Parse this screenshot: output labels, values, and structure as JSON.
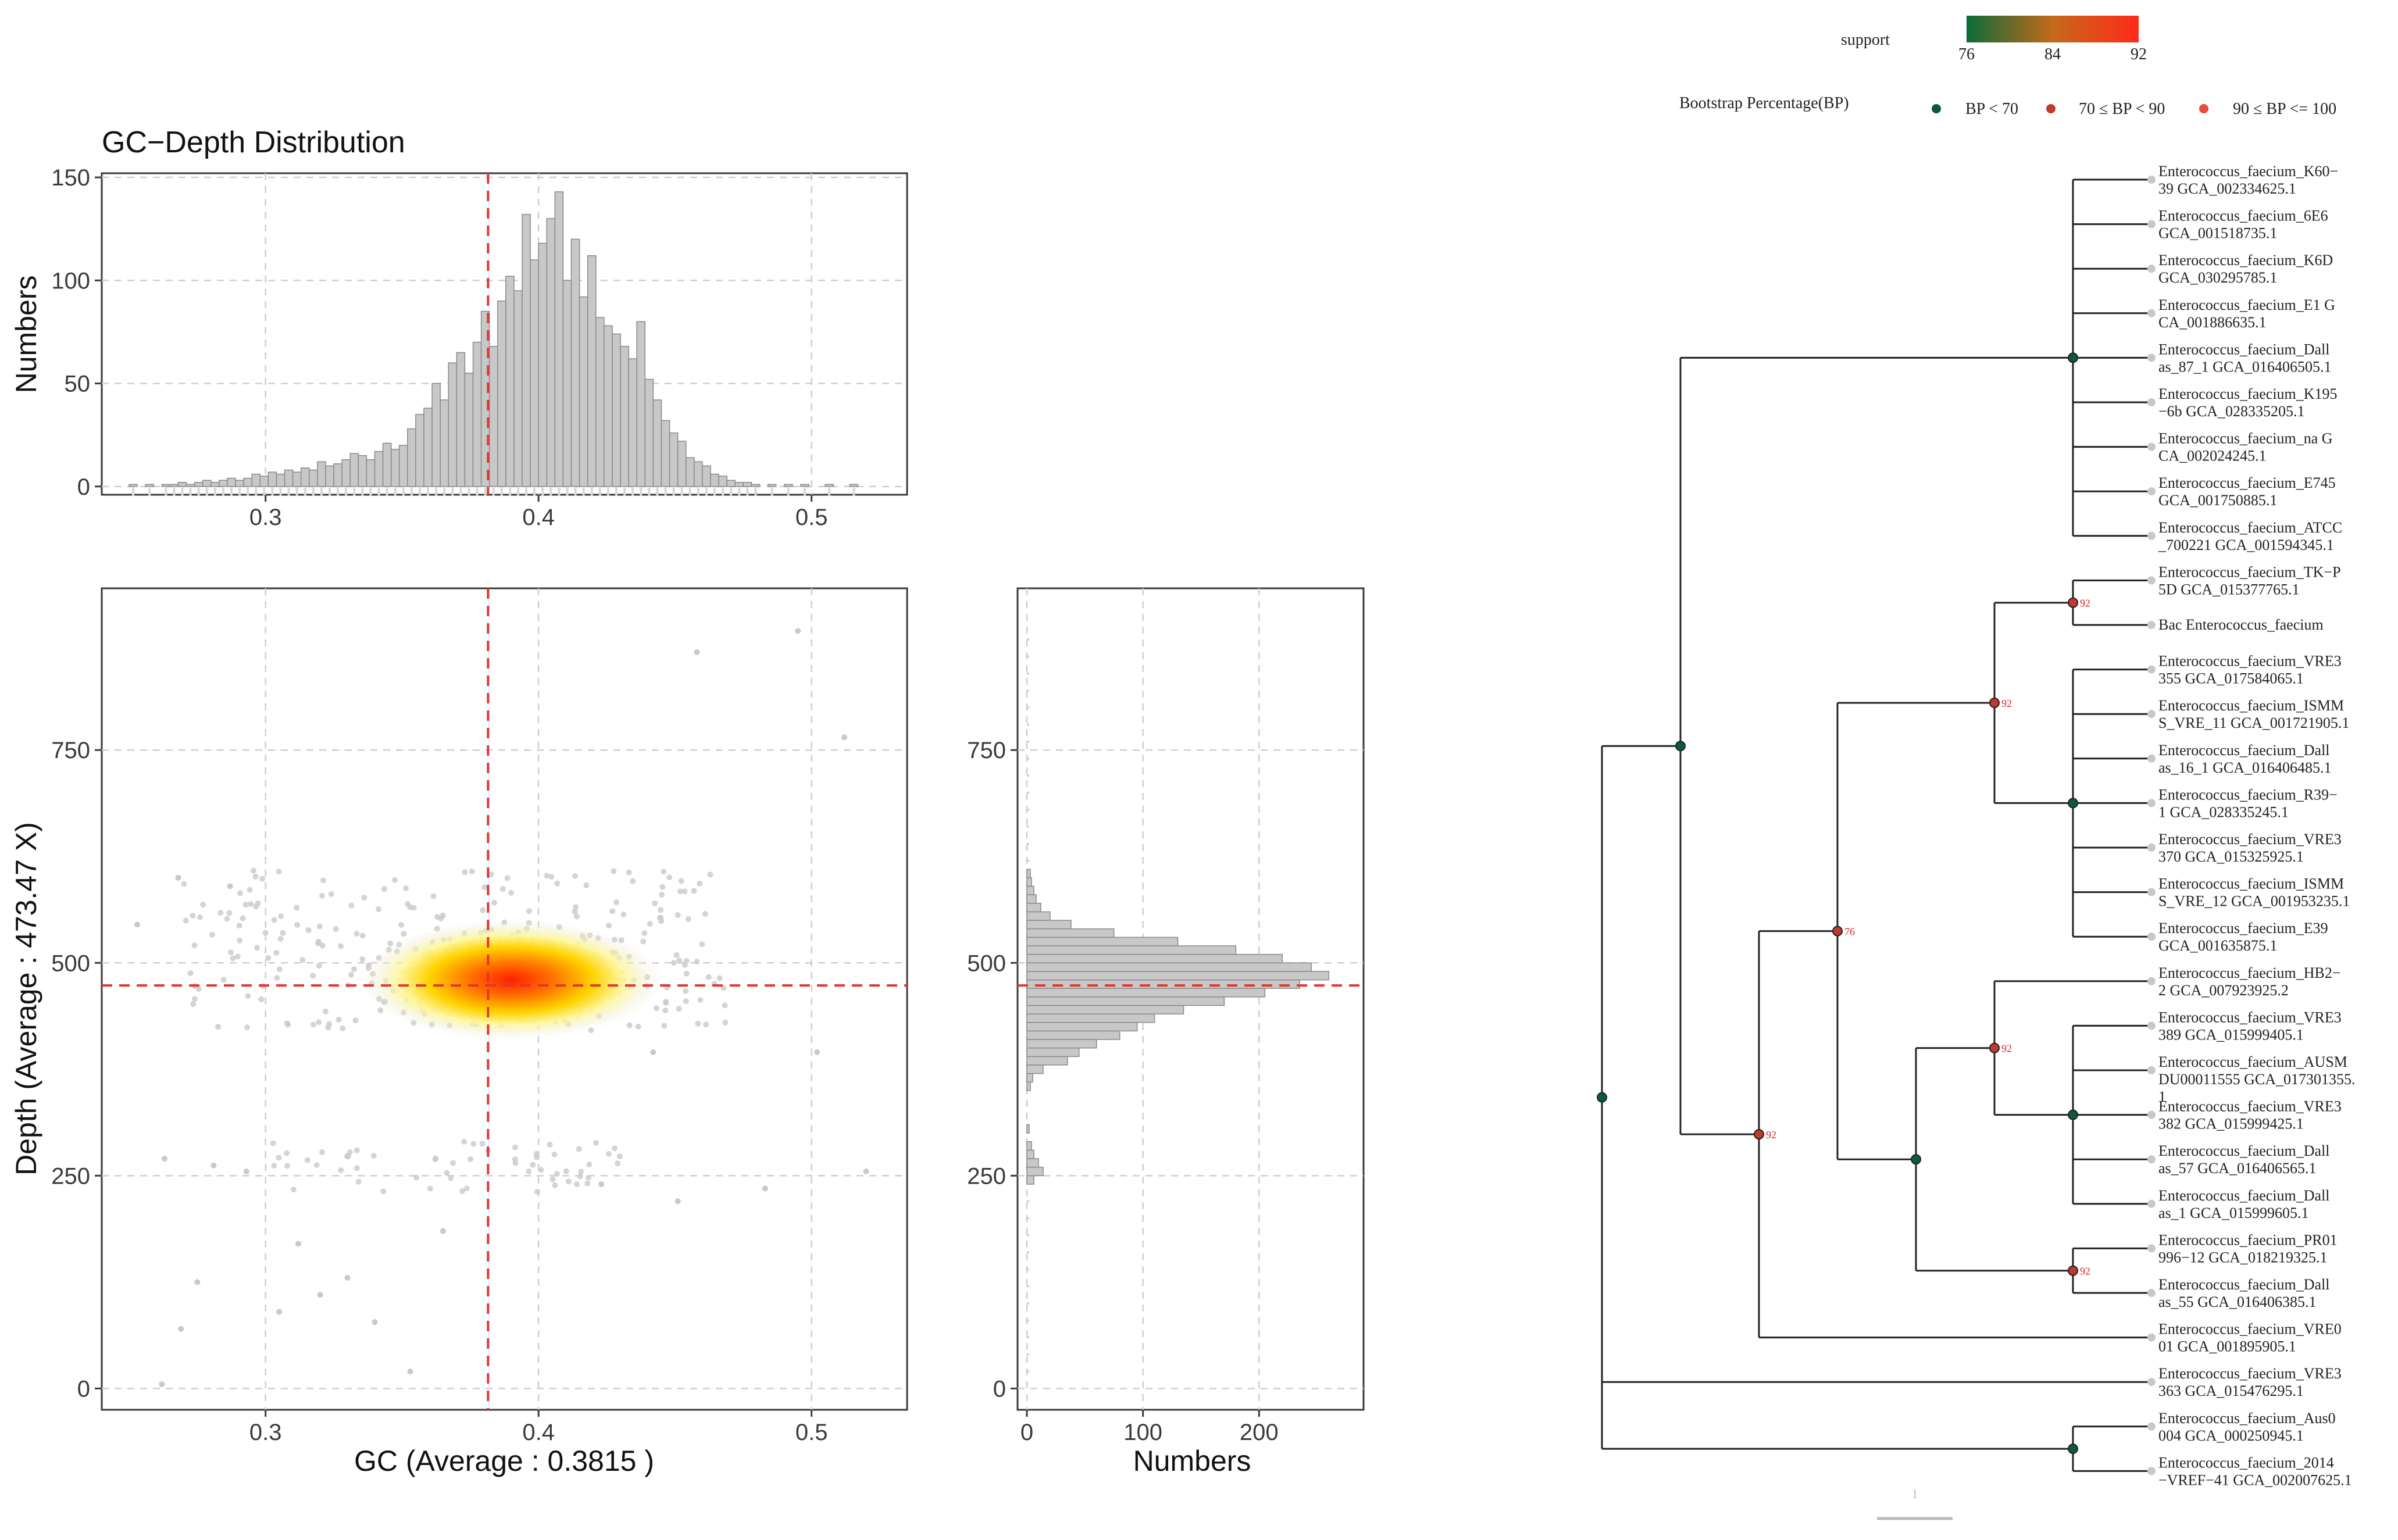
{
  "chart_data": [
    {
      "type": "bar",
      "title": "GC−Depth Distribution",
      "xlabel": "",
      "ylabel": "Numbers",
      "xlim": [
        0.24,
        0.535
      ],
      "ylim": [
        -4,
        152
      ],
      "x_ticks": [
        0.3,
        0.4,
        0.5
      ],
      "y_ticks": [
        0,
        50,
        100,
        150
      ],
      "mean_line_x": 0.3815,
      "grid": true,
      "bin_width": 0.003,
      "bin_start": 0.25,
      "values": [
        1,
        0,
        1,
        0,
        1,
        1,
        2,
        1,
        2,
        3,
        2,
        3,
        4,
        3,
        4,
        6,
        5,
        7,
        6,
        8,
        7,
        9,
        8,
        12,
        10,
        11,
        13,
        16,
        15,
        13,
        17,
        21,
        18,
        20,
        28,
        35,
        38,
        50,
        42,
        60,
        65,
        55,
        70,
        85,
        68,
        90,
        102,
        95,
        132,
        110,
        118,
        130,
        143,
        100,
        120,
        92,
        112,
        82,
        78,
        74,
        68,
        62,
        80,
        52,
        42,
        32,
        26,
        22,
        14,
        12,
        10,
        6,
        5,
        3,
        2,
        2,
        1,
        0,
        1,
        0,
        1,
        0,
        1,
        0,
        0,
        1,
        0,
        0,
        1,
        0,
        0,
        0
      ]
    },
    {
      "type": "scatter",
      "title": "",
      "xlabel": "GC (Average : 0.3815 )",
      "ylabel": "Depth (Average : 473.47 X)",
      "xlim": [
        0.24,
        0.535
      ],
      "ylim": [
        -25,
        940
      ],
      "x_ticks": [
        0.3,
        0.4,
        0.5
      ],
      "y_ticks": [
        0,
        250,
        500,
        750
      ],
      "mean_line_x": 0.3815,
      "mean_line_y": 473.47,
      "grid": true,
      "density_center": [
        0.39,
        480
      ],
      "outlier_points": [
        [
          0.495,
          890
        ],
        [
          0.458,
          865
        ],
        [
          0.512,
          765
        ],
        [
          0.263,
          270
        ],
        [
          0.275,
          125
        ],
        [
          0.281,
          262
        ],
        [
          0.293,
          255
        ],
        [
          0.305,
          90
        ],
        [
          0.33,
          130
        ],
        [
          0.32,
          110
        ],
        [
          0.34,
          78
        ],
        [
          0.312,
          170
        ],
        [
          0.353,
          20
        ],
        [
          0.262,
          5
        ],
        [
          0.269,
          70
        ],
        [
          0.365,
          185
        ],
        [
          0.423,
          240
        ],
        [
          0.451,
          220
        ],
        [
          0.483,
          235
        ],
        [
          0.52,
          255
        ],
        [
          0.442,
          395
        ],
        [
          0.502,
          395
        ],
        [
          0.253,
          545
        ],
        [
          0.268,
          600
        ],
        [
          0.287,
          590
        ]
      ]
    },
    {
      "type": "bar",
      "orientation": "horizontal",
      "title": "",
      "xlabel": "Numbers",
      "ylabel": "",
      "xlim": [
        -8,
        290
      ],
      "ylim": [
        -25,
        940
      ],
      "x_ticks": [
        0,
        100,
        200
      ],
      "y_ticks": [
        0,
        250,
        500,
        750
      ],
      "mean_line_y": 473.47,
      "grid": true,
      "bin_height": 10,
      "bins": [
        [
          380,
          35
        ],
        [
          390,
          45
        ],
        [
          400,
          60
        ],
        [
          410,
          80
        ],
        [
          420,
          95
        ],
        [
          430,
          110
        ],
        [
          440,
          135
        ],
        [
          450,
          170
        ],
        [
          460,
          205
        ],
        [
          470,
          235
        ],
        [
          480,
          260
        ],
        [
          490,
          245
        ],
        [
          500,
          220
        ],
        [
          510,
          180
        ],
        [
          520,
          130
        ],
        [
          530,
          75
        ],
        [
          540,
          38
        ],
        [
          550,
          20
        ],
        [
          560,
          12
        ],
        [
          570,
          8
        ],
        [
          580,
          6
        ],
        [
          590,
          4
        ],
        [
          600,
          3
        ],
        [
          240,
          6
        ],
        [
          250,
          14
        ],
        [
          260,
          10
        ],
        [
          270,
          6
        ],
        [
          280,
          4
        ],
        [
          300,
          2
        ],
        [
          350,
          3
        ],
        [
          360,
          5
        ],
        [
          370,
          14
        ]
      ]
    }
  ],
  "tree": {
    "legend_support_title": "support",
    "legend_support_ticks": [
      "76",
      "84",
      "92"
    ],
    "legend_bp_title": "Bootstrap Percentage(BP)",
    "legend_bp_items": [
      "BP < 70",
      "70 ≤ BP < 90",
      "90 ≤ BP <= 100"
    ],
    "tips": [
      [
        "Enterococcus_faecium_K60−",
        "39 GCA_002334625.1"
      ],
      [
        "Enterococcus_faecium_6E6",
        "GCA_001518735.1"
      ],
      [
        "Enterococcus_faecium_K6D",
        "GCA_030295785.1"
      ],
      [
        "Enterococcus_faecium_E1 G",
        "CA_001886635.1"
      ],
      [
        "Enterococcus_faecium_Dall",
        "as_87_1 GCA_016406505.1"
      ],
      [
        "Enterococcus_faecium_K195",
        "−6b GCA_028335205.1"
      ],
      [
        "Enterococcus_faecium_na G",
        "CA_002024245.1"
      ],
      [
        "Enterococcus_faecium_E745",
        "GCA_001750885.1"
      ],
      [
        "Enterococcus_faecium_ATCC",
        "_700221 GCA_001594345.1"
      ],
      [
        "Enterococcus_faecium_TK−P",
        "5D GCA_015377765.1"
      ],
      [
        "Bac Enterococcus_faecium"
      ],
      [
        "Enterococcus_faecium_VRE3",
        "355 GCA_017584065.1"
      ],
      [
        "Enterococcus_faecium_ISMM",
        "S_VRE_11 GCA_001721905.1"
      ],
      [
        "Enterococcus_faecium_Dall",
        "as_16_1 GCA_016406485.1"
      ],
      [
        "Enterococcus_faecium_R39−",
        "1 GCA_028335245.1"
      ],
      [
        "Enterococcus_faecium_VRE3",
        "370 GCA_015325925.1"
      ],
      [
        "Enterococcus_faecium_ISMM",
        "S_VRE_12 GCA_001953235.1"
      ],
      [
        "Enterococcus_faecium_E39",
        "GCA_001635875.1"
      ],
      [
        "Enterococcus_faecium_HB2−",
        "2 GCA_007923925.2"
      ],
      [
        "Enterococcus_faecium_VRE3",
        "389 GCA_015999405.1"
      ],
      [
        "Enterococcus_faecium_AUSM",
        "DU00011555 GCA_017301355.",
        "1"
      ],
      [
        "Enterococcus_faecium_VRE3",
        "382 GCA_015999425.1"
      ],
      [
        "Enterococcus_faecium_Dall",
        "as_57 GCA_016406565.1"
      ],
      [
        "Enterococcus_faecium_Dall",
        "as_1 GCA_015999605.1"
      ],
      [
        "Enterococcus_faecium_PR01",
        "996−12 GCA_018219325.1"
      ],
      [
        "Enterococcus_faecium_Dall",
        "as_55 GCA_016406385.1"
      ],
      [
        "Enterococcus_faecium_VRE0",
        "01 GCA_001895905.1"
      ],
      [
        "Enterococcus_faecium_VRE3",
        "363 GCA_015476295.1"
      ],
      [
        "Enterococcus_faecium_Aus0",
        "004 GCA_000250945.1"
      ],
      [
        "Enterococcus_faecium_2014",
        "−VREF−41 GCA_002007625.1"
      ]
    ],
    "support_labels": [
      "92",
      "92",
      "92",
      "92",
      "76",
      "92"
    ],
    "scale_label": "1"
  },
  "colors": {
    "bar_fill": "#c8c8c8",
    "mean_line": "#e3342f",
    "node_low": "#0b5a3a",
    "node_mid": "#c0392b",
    "node_high": "#e74c3c",
    "gradient_low": "#0b6b3a",
    "gradient_high": "#ff2a1a"
  }
}
